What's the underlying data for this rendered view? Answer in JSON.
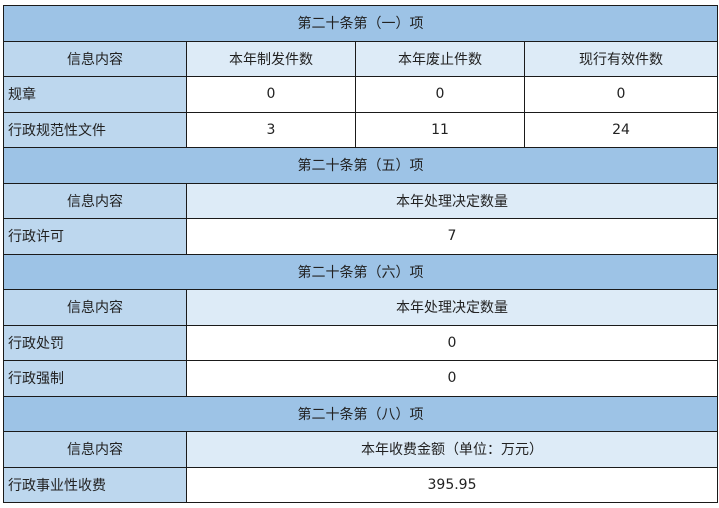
{
  "colors": {
    "section_header": "#9dc3e6",
    "label_column": "#bdd7ee",
    "column_header": "#ddebf7"
  },
  "section1": {
    "title": "第二十条第（一）项",
    "headers": [
      "信息内容",
      "本年制发件数",
      "本年废止件数",
      "现行有效件数"
    ],
    "rows": [
      {
        "label": "规章",
        "values": [
          "0",
          "0",
          "0"
        ]
      },
      {
        "label": "行政规范性文件",
        "values": [
          "3",
          "11",
          "24"
        ]
      }
    ]
  },
  "section5": {
    "title": "第二十条第（五）项",
    "headers": [
      "信息内容",
      "本年处理决定数量"
    ],
    "rows": [
      {
        "label": "行政许可",
        "value": "7"
      }
    ]
  },
  "section6": {
    "title": "第二十条第（六）项",
    "headers": [
      "信息内容",
      "本年处理决定数量"
    ],
    "rows": [
      {
        "label": "行政处罚",
        "value": "0"
      },
      {
        "label": "行政强制",
        "value": "0"
      }
    ]
  },
  "section8": {
    "title": "第二十条第（八）项",
    "headers": [
      "信息内容",
      "本年收费金额（单位：万元）"
    ],
    "rows": [
      {
        "label": "行政事业性收费",
        "value": "395.95"
      }
    ]
  }
}
